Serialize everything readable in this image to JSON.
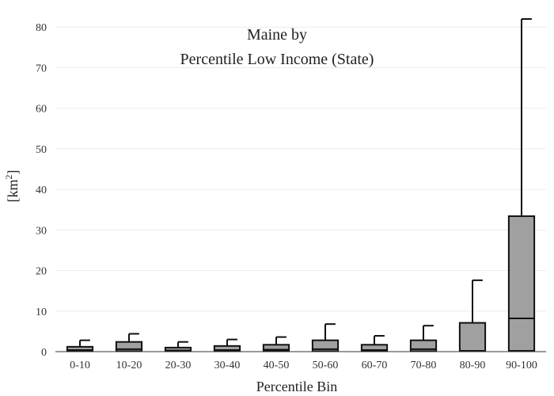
{
  "chart_data": {
    "type": "box",
    "title_line1": "Maine  by",
    "title_line2": "Percentile Low Income (State)",
    "xlabel": "Percentile Bin",
    "ylabel_base": "[km",
    "ylabel_sup": "2",
    "ylabel_end": "]",
    "ylim": [
      0,
      82
    ],
    "yticks": [
      0,
      10,
      20,
      30,
      40,
      50,
      60,
      70,
      80
    ],
    "grid": true,
    "colors": {
      "box_fill": "#a0a0a0",
      "box_stroke": "#111111",
      "grid": "#ececec"
    },
    "categories": [
      "0-10",
      "10-20",
      "20-30",
      "30-40",
      "40-50",
      "50-60",
      "60-70",
      "70-80",
      "80-90",
      "90-100"
    ],
    "boxes": [
      {
        "min": 0.0,
        "q1": 0.1,
        "median": 0.4,
        "q3": 1.2,
        "max": 2.8
      },
      {
        "min": 0.0,
        "q1": 0.1,
        "median": 0.6,
        "q3": 2.4,
        "max": 4.4
      },
      {
        "min": 0.0,
        "q1": 0.1,
        "median": 0.3,
        "q3": 1.0,
        "max": 2.4
      },
      {
        "min": 0.0,
        "q1": 0.1,
        "median": 0.4,
        "q3": 1.4,
        "max": 3.0
      },
      {
        "min": 0.0,
        "q1": 0.1,
        "median": 0.5,
        "q3": 1.7,
        "max": 3.6
      },
      {
        "min": 0.0,
        "q1": 0.1,
        "median": 0.6,
        "q3": 2.8,
        "max": 6.8
      },
      {
        "min": 0.0,
        "q1": 0.1,
        "median": 0.4,
        "q3": 1.7,
        "max": 3.9
      },
      {
        "min": 0.0,
        "q1": 0.1,
        "median": 0.6,
        "q3": 2.8,
        "max": 6.4
      },
      {
        "min": 0.0,
        "q1": 0.1,
        "median": 0.2,
        "q3": 7.1,
        "max": 17.6
      },
      {
        "min": 0.0,
        "q1": 0.2,
        "median": 8.2,
        "q3": 33.4,
        "max": 82.0
      }
    ]
  }
}
